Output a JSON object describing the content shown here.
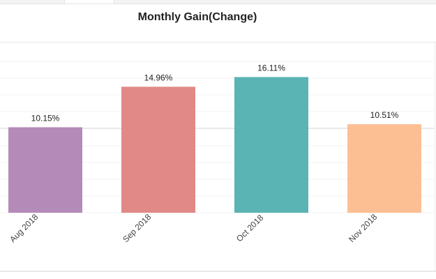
{
  "chart_data": {
    "type": "bar",
    "title": "Monthly Gain(Change)",
    "categories": [
      "Aug 2018",
      "Sep 2018",
      "Oct 2018",
      "Nov 2018"
    ],
    "values": [
      10.15,
      14.96,
      16.11,
      10.51
    ],
    "value_labels": [
      "10.15%",
      "14.96%",
      "16.11%",
      "10.51%"
    ],
    "colors": [
      "#b48ab8",
      "#e18987",
      "#5ab4b3",
      "#fcbf94"
    ],
    "ylim": [
      0,
      18.8
    ],
    "grid": true,
    "xlabel": "",
    "ylabel": ""
  }
}
